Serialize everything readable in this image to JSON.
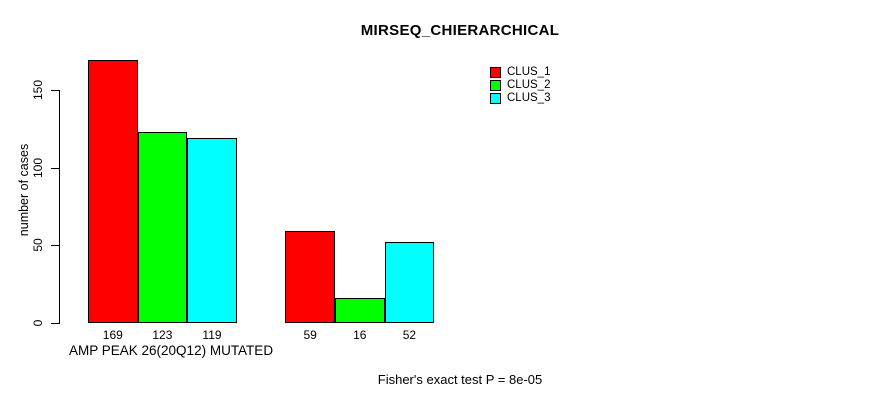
{
  "chart_data": {
    "type": "bar",
    "title": "MIRSEQ_CHIERARCHICAL",
    "ylabel": "number of cases",
    "xlabel": "AMP PEAK 26(20Q12) MUTATED",
    "footnote": "Fisher's exact test P = 8e-05",
    "legend": {
      "position": "top-right",
      "entries": [
        "CLUS_1",
        "CLUS_2",
        "CLUS_3"
      ]
    },
    "series": [
      {
        "name": "CLUS_1",
        "color": "#ff0000",
        "values": [
          169,
          59
        ]
      },
      {
        "name": "CLUS_2",
        "color": "#00ff00",
        "values": [
          123,
          16
        ]
      },
      {
        "name": "CLUS_3",
        "color": "#00ffff",
        "values": [
          119,
          52
        ]
      }
    ],
    "bar_value_labels": [
      [
        169,
        123,
        119
      ],
      [
        59,
        16,
        52
      ]
    ],
    "y_ticks": [
      0,
      50,
      100,
      150
    ],
    "ylim": [
      0,
      175
    ],
    "grid": false,
    "bar_border_color": "#000000",
    "text_color": "#000000",
    "background_color": "#ffffff"
  }
}
